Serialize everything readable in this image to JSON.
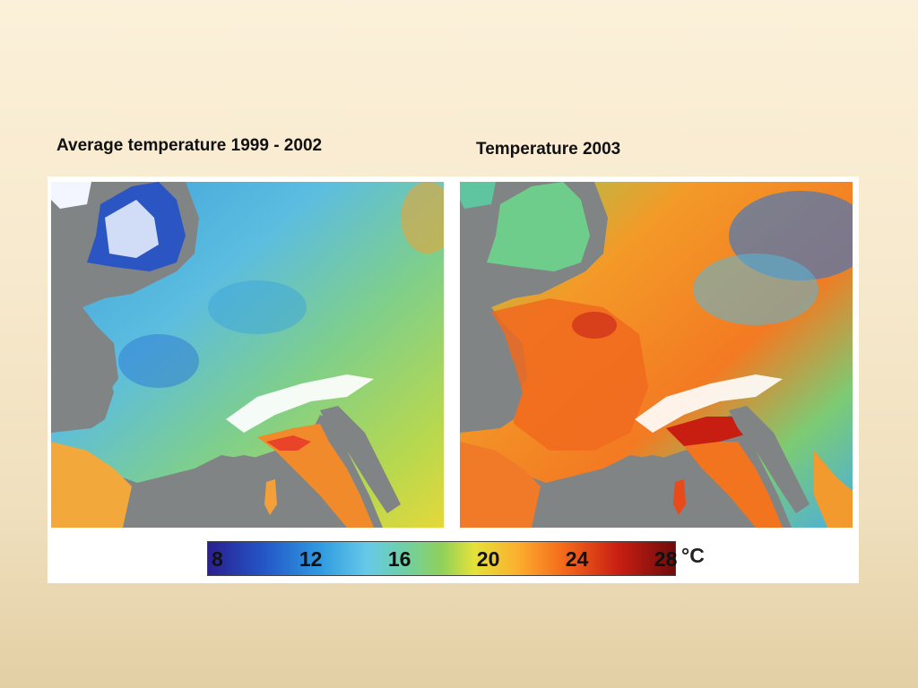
{
  "titles": {
    "left": "Average temperature 1999 - 2002",
    "right": "Temperature 2003"
  },
  "colorbar": {
    "ticks": [
      "8",
      "12",
      "16",
      "20",
      "24",
      "28"
    ],
    "unit": "°C",
    "range": [
      8,
      28
    ],
    "colors": {
      "cold": "#2a1f8f",
      "cool": "#2f9ae0",
      "mild": "#8fd05a",
      "warm": "#fbb12e",
      "hot": "#c81e12",
      "hottest": "#6e0c0c"
    }
  },
  "maps": [
    {
      "period": "1999 - 2002",
      "dominant_colors": [
        "#2f9ae0",
        "#66c9e8",
        "#8fd05a",
        "#ffffff"
      ],
      "sea_color": "#808485"
    },
    {
      "period": "2003",
      "dominant_colors": [
        "#f56a1c",
        "#fbb12e",
        "#8fd05a",
        "#c81e12"
      ],
      "sea_color": "#808485"
    }
  ]
}
